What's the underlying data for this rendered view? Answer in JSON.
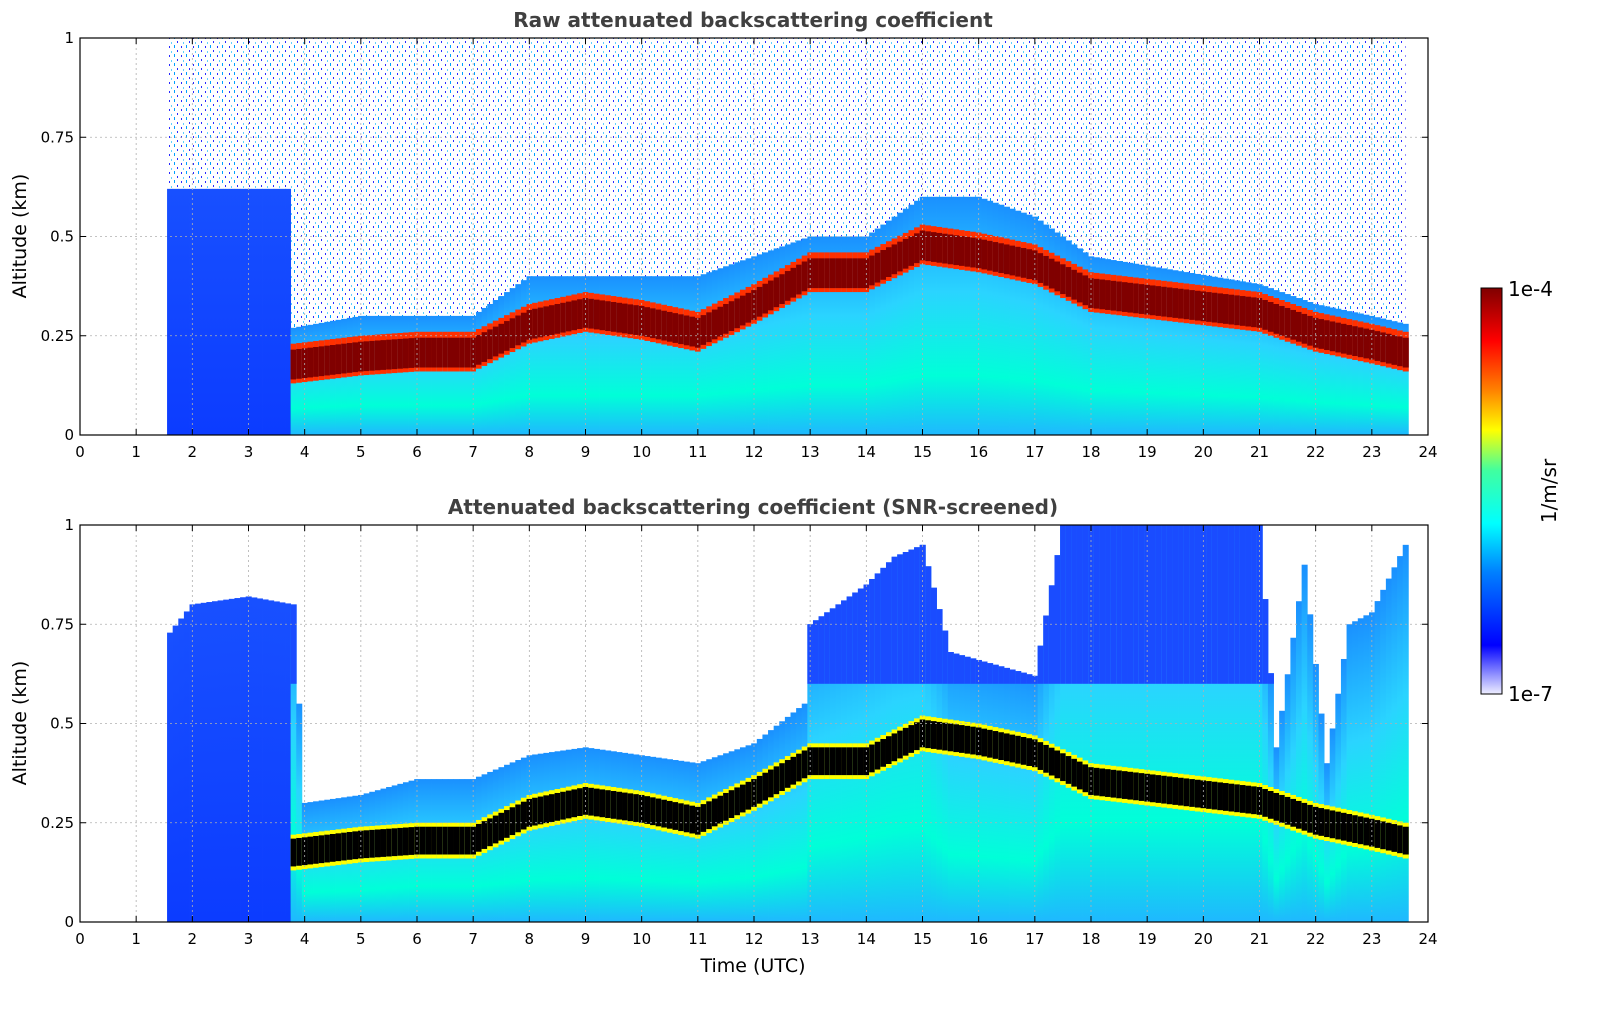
{
  "chart_data": [
    {
      "type": "heatmap",
      "title": "Raw attenuated backscattering coefficient",
      "xlabel": "",
      "ylabel": "Altitude (km)",
      "xlim": [
        0,
        24
      ],
      "ylim": [
        0,
        1
      ],
      "x_ticks": [
        "0",
        "1",
        "2",
        "3",
        "4",
        "5",
        "6",
        "7",
        "8",
        "9",
        "10",
        "11",
        "12",
        "13",
        "14",
        "15",
        "16",
        "17",
        "18",
        "19",
        "20",
        "21",
        "22",
        "23",
        "24"
      ],
      "y_ticks": [
        "0",
        "0.25",
        "0.5",
        "0.75",
        "1"
      ],
      "grid": true,
      "data_start_hour": 1.55,
      "data_end_hour": 23.6,
      "aerosol_layer_top_km": [
        [
          3.8,
          0.27
        ],
        [
          5,
          0.3
        ],
        [
          6,
          0.3
        ],
        [
          7,
          0.3
        ],
        [
          8,
          0.4
        ],
        [
          9,
          0.4
        ],
        [
          10,
          0.4
        ],
        [
          11,
          0.4
        ],
        [
          12,
          0.45
        ],
        [
          13,
          0.5
        ],
        [
          14,
          0.5
        ],
        [
          15,
          0.6
        ],
        [
          16,
          0.6
        ],
        [
          17,
          0.55
        ],
        [
          18,
          0.45
        ],
        [
          21,
          0.38
        ],
        [
          22,
          0.33
        ],
        [
          23,
          0.3
        ],
        [
          23.6,
          0.28
        ]
      ],
      "max_backscatter_layer_km": [
        [
          3.8,
          0.17
        ],
        [
          5,
          0.19
        ],
        [
          6,
          0.2
        ],
        [
          7,
          0.2
        ],
        [
          8,
          0.27
        ],
        [
          9,
          0.3
        ],
        [
          10,
          0.28
        ],
        [
          11,
          0.25
        ],
        [
          12,
          0.32
        ],
        [
          13,
          0.4
        ],
        [
          14,
          0.4
        ],
        [
          15,
          0.47
        ],
        [
          16,
          0.45
        ],
        [
          17,
          0.42
        ],
        [
          18,
          0.35
        ],
        [
          21,
          0.3
        ],
        [
          22,
          0.25
        ],
        [
          23,
          0.22
        ],
        [
          23.6,
          0.2
        ]
      ]
    },
    {
      "type": "heatmap",
      "title": "Attenuated backscattering coefficient (SNR-screened)",
      "xlabel": "Time (UTC)",
      "ylabel": "Altitude (km)",
      "xlim": [
        0,
        24
      ],
      "ylim": [
        0,
        1
      ],
      "x_ticks": [
        "0",
        "1",
        "2",
        "3",
        "4",
        "5",
        "6",
        "7",
        "8",
        "9",
        "10",
        "11",
        "12",
        "13",
        "14",
        "15",
        "16",
        "17",
        "18",
        "19",
        "20",
        "21",
        "22",
        "23",
        "24"
      ],
      "y_ticks": [
        "0",
        "0.25",
        "0.5",
        "0.75",
        "1"
      ],
      "grid": true,
      "data_start_hour": 1.55,
      "data_end_hour": 23.6,
      "screened_signal_top_km": [
        [
          1.55,
          0.72
        ],
        [
          2,
          0.8
        ],
        [
          3,
          0.82
        ],
        [
          3.8,
          0.8
        ],
        [
          4,
          0.3
        ],
        [
          5,
          0.32
        ],
        [
          6,
          0.36
        ],
        [
          7,
          0.36
        ],
        [
          8,
          0.42
        ],
        [
          9,
          0.44
        ],
        [
          10,
          0.42
        ],
        [
          11,
          0.4
        ],
        [
          12,
          0.45
        ],
        [
          12.9,
          0.55
        ],
        [
          13,
          0.75
        ],
        [
          13.5,
          0.8
        ],
        [
          14,
          0.85
        ],
        [
          14.5,
          0.92
        ],
        [
          15,
          0.95
        ],
        [
          15.5,
          0.68
        ],
        [
          16,
          0.66
        ],
        [
          17,
          0.62
        ],
        [
          17.5,
          1.0
        ],
        [
          18,
          1.0
        ],
        [
          18.5,
          1.0
        ],
        [
          19,
          1.0
        ],
        [
          20,
          1.0
        ],
        [
          21,
          1.0
        ],
        [
          21.3,
          0.44
        ],
        [
          21.8,
          0.9
        ],
        [
          22.2,
          0.4
        ],
        [
          22.6,
          0.75
        ],
        [
          23,
          0.78
        ],
        [
          23.6,
          0.95
        ]
      ]
    }
  ],
  "colorbar": {
    "label": "1/m/sr",
    "max_label": "1e-4",
    "min_label": "1e-7",
    "min": 1e-07,
    "max": 0.0001,
    "scale": "log"
  },
  "colors": {
    "title": "#404040",
    "grid": "#b0b0b0",
    "saturated_screened": "#000000"
  }
}
